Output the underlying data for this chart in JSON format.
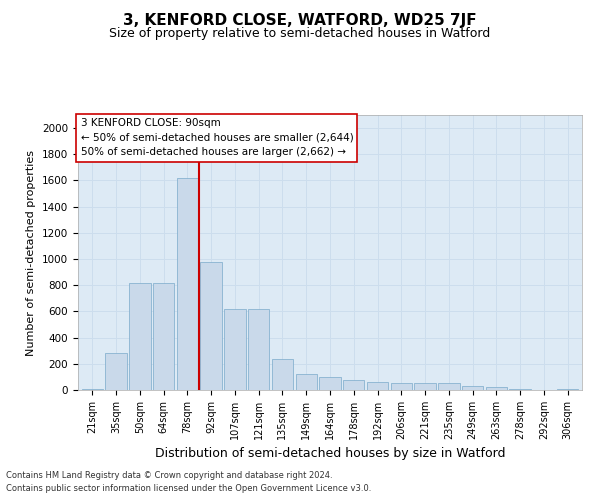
{
  "title": "3, KENFORD CLOSE, WATFORD, WD25 7JF",
  "subtitle": "Size of property relative to semi-detached houses in Watford",
  "xlabel": "Distribution of semi-detached houses by size in Watford",
  "ylabel": "Number of semi-detached properties",
  "footer_line1": "Contains HM Land Registry data © Crown copyright and database right 2024.",
  "footer_line2": "Contains public sector information licensed under the Open Government Licence v3.0.",
  "annotation_line1": "3 KENFORD CLOSE: 90sqm",
  "annotation_line2": "← 50% of semi-detached houses are smaller (2,644)",
  "annotation_line3": "50% of semi-detached houses are larger (2,662) →",
  "categories": [
    "21sqm",
    "35sqm",
    "50sqm",
    "64sqm",
    "78sqm",
    "92sqm",
    "107sqm",
    "121sqm",
    "135sqm",
    "149sqm",
    "164sqm",
    "178sqm",
    "192sqm",
    "206sqm",
    "221sqm",
    "235sqm",
    "249sqm",
    "263sqm",
    "278sqm",
    "292sqm",
    "306sqm"
  ],
  "values": [
    5,
    280,
    820,
    820,
    1620,
    980,
    620,
    620,
    240,
    120,
    100,
    75,
    60,
    55,
    50,
    50,
    30,
    20,
    5,
    2,
    5
  ],
  "bar_color": "#c9d9ea",
  "bar_edge_color": "#7aaaca",
  "vline_color": "#cc0000",
  "vline_pos": 4.5,
  "annotation_box_color": "#ffffff",
  "annotation_box_edge": "#cc0000",
  "ylim": [
    0,
    2100
  ],
  "yticks": [
    0,
    200,
    400,
    600,
    800,
    1000,
    1200,
    1400,
    1600,
    1800,
    2000
  ],
  "grid_color": "#ccdded",
  "background_color": "#ddeaf5",
  "title_fontsize": 11,
  "subtitle_fontsize": 9,
  "xlabel_fontsize": 9,
  "ylabel_fontsize": 8,
  "tick_fontsize": 7,
  "annotation_fontsize": 7.5,
  "footer_fontsize": 6
}
